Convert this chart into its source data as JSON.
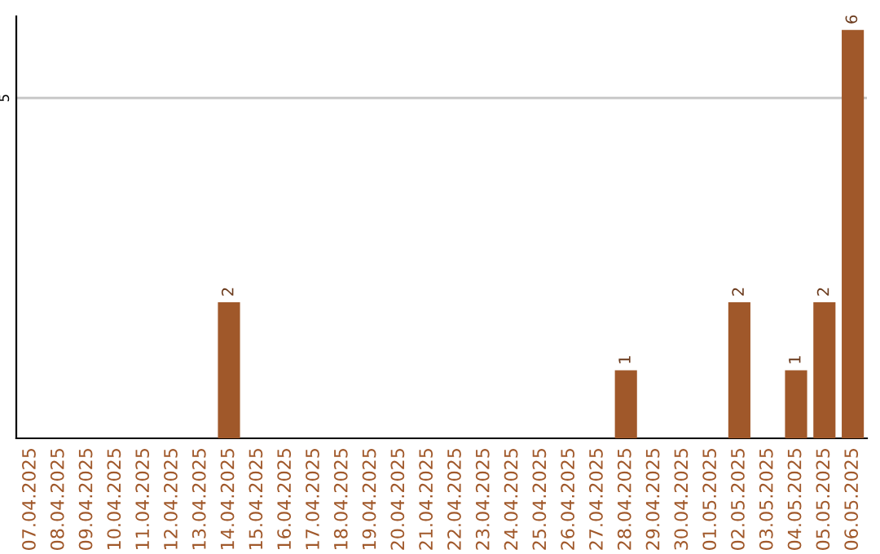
{
  "chart_data": {
    "type": "bar",
    "categories": [
      "07.04.2025",
      "08.04.2025",
      "09.04.2025",
      "10.04.2025",
      "11.04.2025",
      "12.04.2025",
      "13.04.2025",
      "14.04.2025",
      "15.04.2025",
      "16.04.2025",
      "17.04.2025",
      "18.04.2025",
      "19.04.2025",
      "20.04.2025",
      "21.04.2025",
      "22.04.2025",
      "23.04.2025",
      "24.04.2025",
      "25.04.2025",
      "26.04.2025",
      "27.04.2025",
      "28.04.2025",
      "29.04.2025",
      "30.04.2025",
      "01.05.2025",
      "02.05.2025",
      "03.05.2025",
      "04.05.2025",
      "05.05.2025",
      "06.05.2025"
    ],
    "values": [
      0,
      0,
      0,
      0,
      0,
      0,
      0,
      2,
      0,
      0,
      0,
      0,
      0,
      0,
      0,
      0,
      0,
      0,
      0,
      0,
      0,
      1,
      0,
      0,
      0,
      2,
      0,
      1,
      2,
      6
    ],
    "color": "#a0582a",
    "value_labels": [
      null,
      null,
      null,
      null,
      null,
      null,
      null,
      "2",
      null,
      null,
      null,
      null,
      null,
      null,
      null,
      null,
      null,
      null,
      null,
      null,
      null,
      "1",
      null,
      null,
      null,
      "2",
      null,
      "1",
      "2",
      "6"
    ],
    "ylim": [
      0,
      6.2
    ],
    "yticks": [
      5
    ],
    "grid": "y"
  }
}
